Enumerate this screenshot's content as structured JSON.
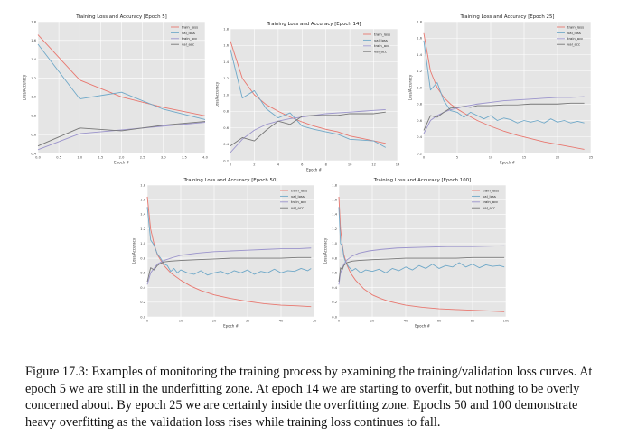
{
  "figure": {
    "caption": "Figure 17.3: Examples of monitoring the training process by examining the training/validation loss curves. At epoch 5 we are still in the underfitting zone. At epoch 14 we are starting to overfit, but nothing to be overly concerned about. By epoch 25 we are certainly inside the overfitting zone. Epochs 50 and 100 demonstrate heavy overfitting as the validation loss rises while training loss continues to fall."
  },
  "colors": {
    "train_loss": "#e8776f",
    "val_loss": "#6fa8c8",
    "train_acc": "#9b94cc",
    "val_acc": "#777777",
    "plot_bg": "#e5e5e5",
    "grid": "#ffffff"
  },
  "chart_data": [
    {
      "type": "line",
      "title": "Training Loss and Accuracy [Epoch 5]",
      "xlabel": "Epoch #",
      "ylabel": "Loss/Accuracy",
      "xlim": [
        0,
        4
      ],
      "ylim": [
        0.4,
        1.8
      ],
      "xticks": [
        0,
        0.5,
        1,
        1.5,
        2,
        2.5,
        3,
        3.5,
        4
      ],
      "xtick_labels": [
        "0.0",
        "0.5",
        "1.0",
        "1.5",
        "2.0",
        "2.5",
        "3.0",
        "3.5",
        "4.0"
      ],
      "yticks": [
        0.4,
        0.6,
        0.8,
        1.0,
        1.2,
        1.4,
        1.6,
        1.8
      ],
      "ytick_labels": [
        "0.4",
        "0.6",
        "0.8",
        "1.0",
        "1.2",
        "1.4",
        "1.6",
        "1.8"
      ],
      "legend_position": "top-right",
      "series": [
        {
          "name": "train_loss",
          "x": [
            0,
            1,
            2,
            3,
            4
          ],
          "y": [
            1.66,
            1.18,
            1.0,
            0.89,
            0.8
          ]
        },
        {
          "name": "val_loss",
          "x": [
            0,
            1,
            2,
            3,
            4
          ],
          "y": [
            1.56,
            0.98,
            1.05,
            0.87,
            0.76
          ]
        },
        {
          "name": "train_acc",
          "x": [
            0,
            1,
            2,
            3,
            4
          ],
          "y": [
            0.44,
            0.61,
            0.65,
            0.69,
            0.73
          ]
        },
        {
          "name": "val_acc",
          "x": [
            0,
            1,
            2,
            3,
            4
          ],
          "y": [
            0.48,
            0.67,
            0.64,
            0.7,
            0.74
          ]
        }
      ]
    },
    {
      "type": "line",
      "title": "Training Loss and Accuracy [Epoch 14]",
      "xlabel": "Epoch #",
      "ylabel": "Loss/Accuracy",
      "xlim": [
        0,
        14
      ],
      "ylim": [
        0.2,
        1.8
      ],
      "xticks": [
        0,
        2,
        4,
        6,
        8,
        10,
        12,
        14
      ],
      "xtick_labels": [
        "0",
        "2",
        "4",
        "6",
        "8",
        "10",
        "12",
        "14"
      ],
      "yticks": [
        0.2,
        0.4,
        0.6,
        0.8,
        1.0,
        1.2,
        1.4,
        1.6,
        1.8
      ],
      "ytick_labels": [
        "0.2",
        "0.4",
        "0.6",
        "0.8",
        "1.0",
        "1.2",
        "1.4",
        "1.6",
        "1.8"
      ],
      "legend_position": "top-right",
      "series": [
        {
          "name": "train_loss",
          "x": [
            0,
            1,
            2,
            3,
            4,
            5,
            6,
            7,
            8,
            9,
            10,
            11,
            12,
            13
          ],
          "y": [
            1.65,
            1.2,
            1.0,
            0.88,
            0.8,
            0.73,
            0.67,
            0.62,
            0.58,
            0.55,
            0.5,
            0.47,
            0.44,
            0.41
          ]
        },
        {
          "name": "val_loss",
          "x": [
            0,
            1,
            2,
            3,
            4,
            5,
            6,
            7,
            8,
            9,
            10,
            11,
            12,
            13
          ],
          "y": [
            1.55,
            0.96,
            1.05,
            0.83,
            0.72,
            0.78,
            0.62,
            0.58,
            0.55,
            0.52,
            0.46,
            0.45,
            0.44,
            0.36
          ]
        },
        {
          "name": "train_acc",
          "x": [
            0,
            1,
            2,
            3,
            4,
            5,
            6,
            7,
            8,
            9,
            10,
            11,
            12,
            13
          ],
          "y": [
            0.3,
            0.46,
            0.57,
            0.64,
            0.68,
            0.71,
            0.73,
            0.75,
            0.77,
            0.78,
            0.79,
            0.8,
            0.81,
            0.82
          ]
        },
        {
          "name": "val_acc",
          "x": [
            0,
            1,
            2,
            3,
            4,
            5,
            6,
            7,
            8,
            9,
            10,
            11,
            12,
            13
          ],
          "y": [
            0.38,
            0.48,
            0.44,
            0.57,
            0.68,
            0.64,
            0.74,
            0.75,
            0.75,
            0.75,
            0.77,
            0.77,
            0.77,
            0.79
          ]
        }
      ]
    },
    {
      "type": "line",
      "title": "Training Loss and Accuracy [Epoch 25]",
      "xlabel": "Epoch #",
      "ylabel": "Loss/Accuracy",
      "xlim": [
        0,
        25
      ],
      "ylim": [
        0.2,
        1.8
      ],
      "xticks": [
        0,
        5,
        10,
        15,
        20,
        25
      ],
      "xtick_labels": [
        "0",
        "5",
        "10",
        "15",
        "20",
        "25"
      ],
      "yticks": [
        0.2,
        0.4,
        0.6,
        0.8,
        1.0,
        1.2,
        1.4,
        1.6,
        1.8
      ],
      "ytick_labels": [
        "0.2",
        "0.4",
        "0.6",
        "0.8",
        "1.0",
        "1.2",
        "1.4",
        "1.6",
        "1.8"
      ],
      "legend_position": "top-right",
      "series": [
        {
          "name": "train_loss",
          "x": [
            0,
            1,
            2,
            3,
            4,
            5,
            6,
            8,
            10,
            12,
            14,
            16,
            18,
            20,
            22,
            24
          ],
          "y": [
            1.66,
            1.2,
            1.0,
            0.88,
            0.8,
            0.74,
            0.69,
            0.6,
            0.53,
            0.47,
            0.42,
            0.38,
            0.34,
            0.31,
            0.28,
            0.25
          ]
        },
        {
          "name": "val_loss",
          "x": [
            0,
            1,
            2,
            3,
            4,
            5,
            6,
            7,
            8,
            9,
            10,
            11,
            12,
            13,
            14,
            15,
            16,
            17,
            18,
            19,
            20,
            21,
            22,
            23,
            24
          ],
          "y": [
            1.57,
            0.97,
            1.06,
            0.84,
            0.72,
            0.7,
            0.64,
            0.7,
            0.66,
            0.62,
            0.66,
            0.6,
            0.63,
            0.61,
            0.57,
            0.6,
            0.58,
            0.6,
            0.57,
            0.62,
            0.58,
            0.6,
            0.57,
            0.59,
            0.57
          ]
        },
        {
          "name": "train_acc",
          "x": [
            0,
            1,
            2,
            3,
            4,
            5,
            6,
            8,
            10,
            12,
            14,
            16,
            18,
            20,
            22,
            24
          ],
          "y": [
            0.44,
            0.6,
            0.66,
            0.7,
            0.73,
            0.75,
            0.77,
            0.8,
            0.82,
            0.84,
            0.85,
            0.86,
            0.87,
            0.88,
            0.88,
            0.89
          ]
        },
        {
          "name": "val_acc",
          "x": [
            0,
            1,
            2,
            3,
            4,
            5,
            6,
            7,
            8,
            10,
            12,
            14,
            16,
            18,
            20,
            22,
            24
          ],
          "y": [
            0.48,
            0.66,
            0.64,
            0.7,
            0.75,
            0.76,
            0.77,
            0.76,
            0.78,
            0.78,
            0.79,
            0.79,
            0.8,
            0.8,
            0.8,
            0.81,
            0.81
          ]
        }
      ]
    },
    {
      "type": "line",
      "title": "Training Loss and Accuracy [Epoch 50]",
      "xlabel": "Epoch #",
      "ylabel": "Loss/Accuracy",
      "xlim": [
        0,
        50
      ],
      "ylim": [
        0.0,
        1.8
      ],
      "xticks": [
        0,
        10,
        20,
        30,
        40,
        50
      ],
      "xtick_labels": [
        "0",
        "10",
        "20",
        "30",
        "40",
        "50"
      ],
      "yticks": [
        0.0,
        0.2,
        0.4,
        0.6,
        0.8,
        1.0,
        1.2,
        1.4,
        1.6,
        1.8
      ],
      "ytick_labels": [
        "0.0",
        "0.2",
        "0.4",
        "0.6",
        "0.8",
        "1.0",
        "1.2",
        "1.4",
        "1.6",
        "1.8"
      ],
      "legend_position": "top-right",
      "series": [
        {
          "name": "train_loss",
          "x": [
            0,
            1,
            2,
            3,
            5,
            7,
            10,
            13,
            16,
            20,
            25,
            30,
            35,
            40,
            45,
            49
          ],
          "y": [
            1.64,
            1.2,
            1.0,
            0.85,
            0.7,
            0.6,
            0.5,
            0.42,
            0.36,
            0.3,
            0.25,
            0.21,
            0.18,
            0.16,
            0.15,
            0.14
          ]
        },
        {
          "name": "val_loss",
          "x": [
            0,
            1,
            2,
            3,
            4,
            5,
            6,
            7,
            8,
            9,
            10,
            12,
            14,
            16,
            18,
            20,
            22,
            24,
            26,
            28,
            30,
            32,
            34,
            36,
            38,
            40,
            42,
            44,
            46,
            48,
            49
          ],
          "y": [
            1.5,
            1.05,
            0.98,
            0.86,
            0.8,
            0.72,
            0.7,
            0.62,
            0.66,
            0.6,
            0.64,
            0.6,
            0.58,
            0.63,
            0.57,
            0.6,
            0.62,
            0.58,
            0.63,
            0.6,
            0.64,
            0.58,
            0.62,
            0.6,
            0.65,
            0.6,
            0.63,
            0.62,
            0.66,
            0.63,
            0.66
          ]
        },
        {
          "name": "train_acc",
          "x": [
            0,
            1,
            2,
            3,
            5,
            7,
            10,
            15,
            20,
            25,
            30,
            35,
            40,
            45,
            49
          ],
          "y": [
            0.44,
            0.6,
            0.66,
            0.72,
            0.77,
            0.8,
            0.84,
            0.87,
            0.89,
            0.9,
            0.91,
            0.92,
            0.93,
            0.93,
            0.94
          ]
        },
        {
          "name": "val_acc",
          "x": [
            0,
            1,
            2,
            3,
            4,
            5,
            7,
            10,
            15,
            20,
            25,
            30,
            35,
            40,
            45,
            49
          ],
          "y": [
            0.48,
            0.67,
            0.64,
            0.7,
            0.73,
            0.75,
            0.76,
            0.77,
            0.78,
            0.79,
            0.8,
            0.8,
            0.8,
            0.8,
            0.81,
            0.81
          ]
        }
      ]
    },
    {
      "type": "line",
      "title": "Training Loss and Accuracy [Epoch 100]",
      "xlabel": "Epoch #",
      "ylabel": "Loss/Accuracy",
      "xlim": [
        0,
        100
      ],
      "ylim": [
        0.0,
        1.8
      ],
      "xticks": [
        0,
        20,
        40,
        60,
        80,
        100
      ],
      "xtick_labels": [
        "0",
        "20",
        "40",
        "60",
        "80",
        "100"
      ],
      "yticks": [
        0.0,
        0.2,
        0.4,
        0.6,
        0.8,
        1.0,
        1.2,
        1.4,
        1.6,
        1.8
      ],
      "ytick_labels": [
        "0.0",
        "0.2",
        "0.4",
        "0.6",
        "0.8",
        "1.0",
        "1.2",
        "1.4",
        "1.6",
        "1.8"
      ],
      "legend_position": "top-right",
      "series": [
        {
          "name": "train_loss",
          "x": [
            0,
            1,
            2,
            3,
            5,
            7,
            10,
            15,
            20,
            25,
            30,
            40,
            50,
            60,
            70,
            80,
            90,
            99
          ],
          "y": [
            1.64,
            1.2,
            1.0,
            0.85,
            0.7,
            0.6,
            0.5,
            0.38,
            0.3,
            0.25,
            0.21,
            0.16,
            0.13,
            0.11,
            0.1,
            0.09,
            0.08,
            0.07
          ]
        },
        {
          "name": "val_loss",
          "x": [
            0,
            1,
            2,
            3,
            4,
            6,
            8,
            10,
            13,
            16,
            20,
            24,
            28,
            32,
            36,
            40,
            44,
            48,
            52,
            56,
            60,
            64,
            68,
            72,
            76,
            80,
            84,
            88,
            92,
            96,
            99
          ],
          "y": [
            1.5,
            1.0,
            0.98,
            0.82,
            0.75,
            0.68,
            0.63,
            0.66,
            0.6,
            0.64,
            0.62,
            0.65,
            0.6,
            0.66,
            0.63,
            0.68,
            0.64,
            0.7,
            0.66,
            0.72,
            0.66,
            0.7,
            0.68,
            0.74,
            0.68,
            0.72,
            0.67,
            0.71,
            0.69,
            0.7,
            0.68
          ]
        },
        {
          "name": "train_acc",
          "x": [
            0,
            1,
            2,
            3,
            5,
            8,
            12,
            18,
            25,
            35,
            50,
            65,
            80,
            99
          ],
          "y": [
            0.44,
            0.6,
            0.66,
            0.72,
            0.78,
            0.83,
            0.87,
            0.9,
            0.92,
            0.94,
            0.95,
            0.96,
            0.96,
            0.97
          ]
        },
        {
          "name": "val_acc",
          "x": [
            0,
            1,
            2,
            3,
            5,
            8,
            12,
            20,
            30,
            40,
            50,
            60,
            70,
            80,
            90,
            99
          ],
          "y": [
            0.48,
            0.67,
            0.64,
            0.7,
            0.74,
            0.76,
            0.77,
            0.78,
            0.79,
            0.8,
            0.8,
            0.8,
            0.8,
            0.81,
            0.81,
            0.81
          ]
        }
      ]
    }
  ]
}
